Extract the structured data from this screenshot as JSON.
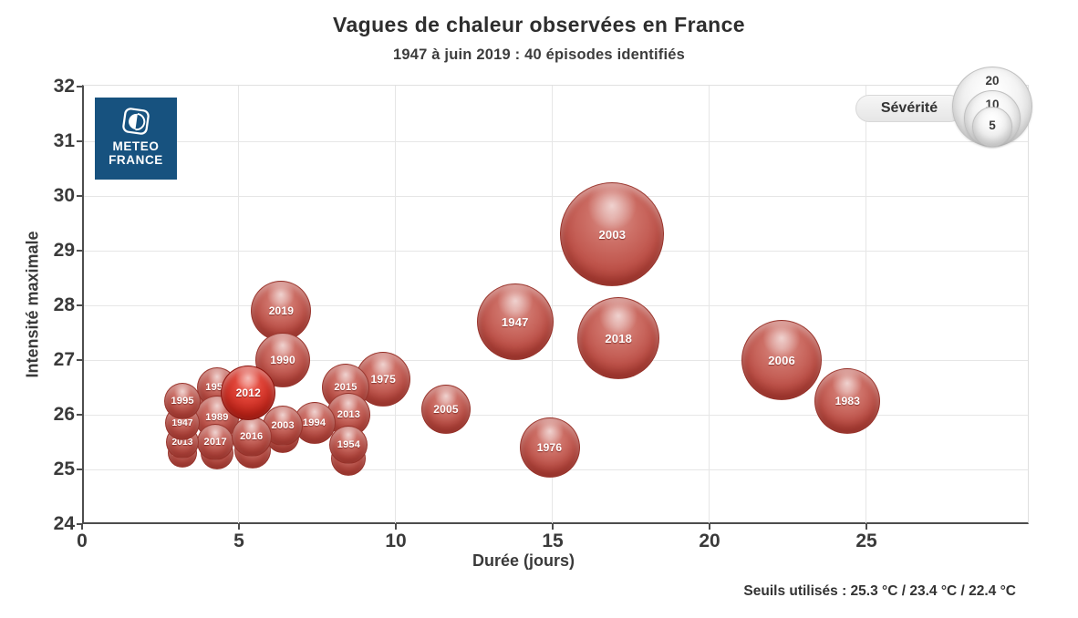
{
  "header": {
    "title": "Vagues de chaleur observées en France",
    "subtitle": "1947 à juin 2019 : 40 épisodes identifiés"
  },
  "logo": {
    "line1": "METEO",
    "line2": "FRANCE",
    "bg_color": "#17527F"
  },
  "legend": {
    "label": "Sévérité",
    "sizes": [
      20,
      10,
      5
    ]
  },
  "footer": {
    "seuils": "Seuils utilisés : 25.3 °C / 23.4 °C / 22.4 °C"
  },
  "colors": {
    "bubble_red": "#c0392b",
    "bubble_dark_red": "#c5261b",
    "faded_label": "rgba(255,226,222,0.52)",
    "logo_blue": "#17527F",
    "text": "#333333",
    "grid": "#e6e6e6",
    "spine": "#4d4d4d"
  },
  "chart_data": {
    "type": "bubble",
    "title": "Vagues de chaleur observées en France",
    "subtitle": "1947 à juin 2019 : 40 épisodes identifiés",
    "xlabel": "Durée (jours)",
    "ylabel": "Intensité maximale",
    "xlim": [
      0,
      30
    ],
    "ylim": [
      24,
      32
    ],
    "xticks": [
      0,
      5,
      10,
      15,
      20,
      25
    ],
    "yticks": [
      24,
      25,
      26,
      27,
      28,
      29,
      30,
      31,
      32
    ],
    "grid": true,
    "legend_label": "Sévérité",
    "legend_sizes": [
      20,
      10,
      5
    ],
    "points": [
      {
        "year": "2003",
        "duration_days": 16.9,
        "intensity": 29.3,
        "severity": 34,
        "radius_px": 57,
        "faded": false,
        "dark": false
      },
      {
        "year": "2018",
        "duration_days": 17.1,
        "intensity": 27.4,
        "severity": 21,
        "radius_px": 45,
        "faded": false,
        "dark": false
      },
      {
        "year": "1947",
        "duration_days": 13.8,
        "intensity": 27.7,
        "severity": 18,
        "radius_px": 42,
        "faded": false,
        "dark": false
      },
      {
        "year": "2006",
        "duration_days": 22.3,
        "intensity": 27.0,
        "severity": 20,
        "radius_px": 44,
        "faded": false,
        "dark": false
      },
      {
        "year": "1983",
        "duration_days": 24.4,
        "intensity": 26.25,
        "severity": 13,
        "radius_px": 36,
        "faded": false,
        "dark": false
      },
      {
        "year": "1976",
        "duration_days": 14.9,
        "intensity": 25.4,
        "severity": 11,
        "radius_px": 33,
        "faded": false,
        "dark": false
      },
      {
        "year": "2019",
        "duration_days": 6.35,
        "intensity": 27.9,
        "severity": 11,
        "radius_px": 33,
        "faded": false,
        "dark": false
      },
      {
        "year": "1990",
        "duration_days": 6.4,
        "intensity": 27.0,
        "severity": 9,
        "radius_px": 30,
        "faded": false,
        "dark": false
      },
      {
        "year": "2005",
        "duration_days": 11.6,
        "intensity": 26.1,
        "severity": 7.5,
        "radius_px": 27,
        "faded": false,
        "dark": false
      },
      {
        "year": "1975",
        "duration_days": 9.6,
        "intensity": 26.65,
        "severity": 9,
        "radius_px": 30,
        "faded": false,
        "dark": false
      },
      {
        "year": "2015",
        "duration_days": 8.4,
        "intensity": 26.5,
        "severity": 7,
        "radius_px": 26,
        "faded": false,
        "dark": false
      },
      {
        "year": "2013",
        "duration_days": 8.5,
        "intensity": 26.0,
        "severity": 6,
        "radius_px": 24,
        "faded": false,
        "dark": false
      },
      {
        "year": "1995",
        "duration_days": 8.5,
        "intensity": 25.2,
        "severity": 4,
        "radius_px": 19,
        "faded": true,
        "dark": false
      },
      {
        "year": "1954",
        "duration_days": 8.5,
        "intensity": 25.45,
        "severity": 4.5,
        "radius_px": 21,
        "faded": false,
        "dark": false
      },
      {
        "year": "1994",
        "duration_days": 7.4,
        "intensity": 25.85,
        "severity": 5.5,
        "radius_px": 23,
        "faded": false,
        "dark": false
      },
      {
        "year": "2005",
        "duration_days": 6.4,
        "intensity": 25.6,
        "severity": 3.5,
        "radius_px": 18,
        "faded": true,
        "dark": false
      },
      {
        "year": "2003",
        "duration_days": 6.4,
        "intensity": 25.8,
        "severity": 5,
        "radius_px": 22,
        "faded": false,
        "dark": false
      },
      {
        "year": "1964",
        "duration_days": 4.3,
        "intensity": 26.25,
        "severity": 4,
        "radius_px": 20,
        "faded": true,
        "dark": false
      },
      {
        "year": "1952",
        "duration_days": 4.3,
        "intensity": 26.5,
        "severity": 5,
        "radius_px": 22,
        "faded": false,
        "dark": false
      },
      {
        "year": "1989",
        "duration_days": 4.3,
        "intensity": 25.95,
        "severity": 6,
        "radius_px": 24,
        "faded": false,
        "dark": false
      },
      {
        "year": "2004",
        "duration_days": 4.3,
        "intensity": 25.3,
        "severity": 3.5,
        "radius_px": 18,
        "faded": true,
        "dark": false
      },
      {
        "year": "2017",
        "duration_days": 4.25,
        "intensity": 25.5,
        "severity": 4,
        "radius_px": 20,
        "faded": false,
        "dark": false
      },
      {
        "year": "1955",
        "duration_days": 3.2,
        "intensity": 25.3,
        "severity": 3,
        "radius_px": 16,
        "faded": true,
        "dark": false
      },
      {
        "year": "2013",
        "duration_days": 3.2,
        "intensity": 25.5,
        "severity": 3.5,
        "radius_px": 18,
        "faded": false,
        "dark": false
      },
      {
        "year": "1947",
        "duration_days": 3.2,
        "intensity": 25.85,
        "severity": 4,
        "radius_px": 19,
        "faded": false,
        "dark": false
      },
      {
        "year": "1995",
        "duration_days": 3.2,
        "intensity": 26.25,
        "severity": 4,
        "radius_px": 20,
        "faded": false,
        "dark": false
      },
      {
        "year": "2010",
        "duration_days": 5.45,
        "intensity": 25.35,
        "severity": 4,
        "radius_px": 20,
        "faded": true,
        "dark": false
      },
      {
        "year": "2016",
        "duration_days": 5.4,
        "intensity": 25.6,
        "severity": 5,
        "radius_px": 22,
        "faded": false,
        "dark": false
      },
      {
        "year": "2012",
        "duration_days": 5.3,
        "intensity": 26.4,
        "severity": 9,
        "radius_px": 30,
        "faded": false,
        "dark": true
      }
    ]
  }
}
